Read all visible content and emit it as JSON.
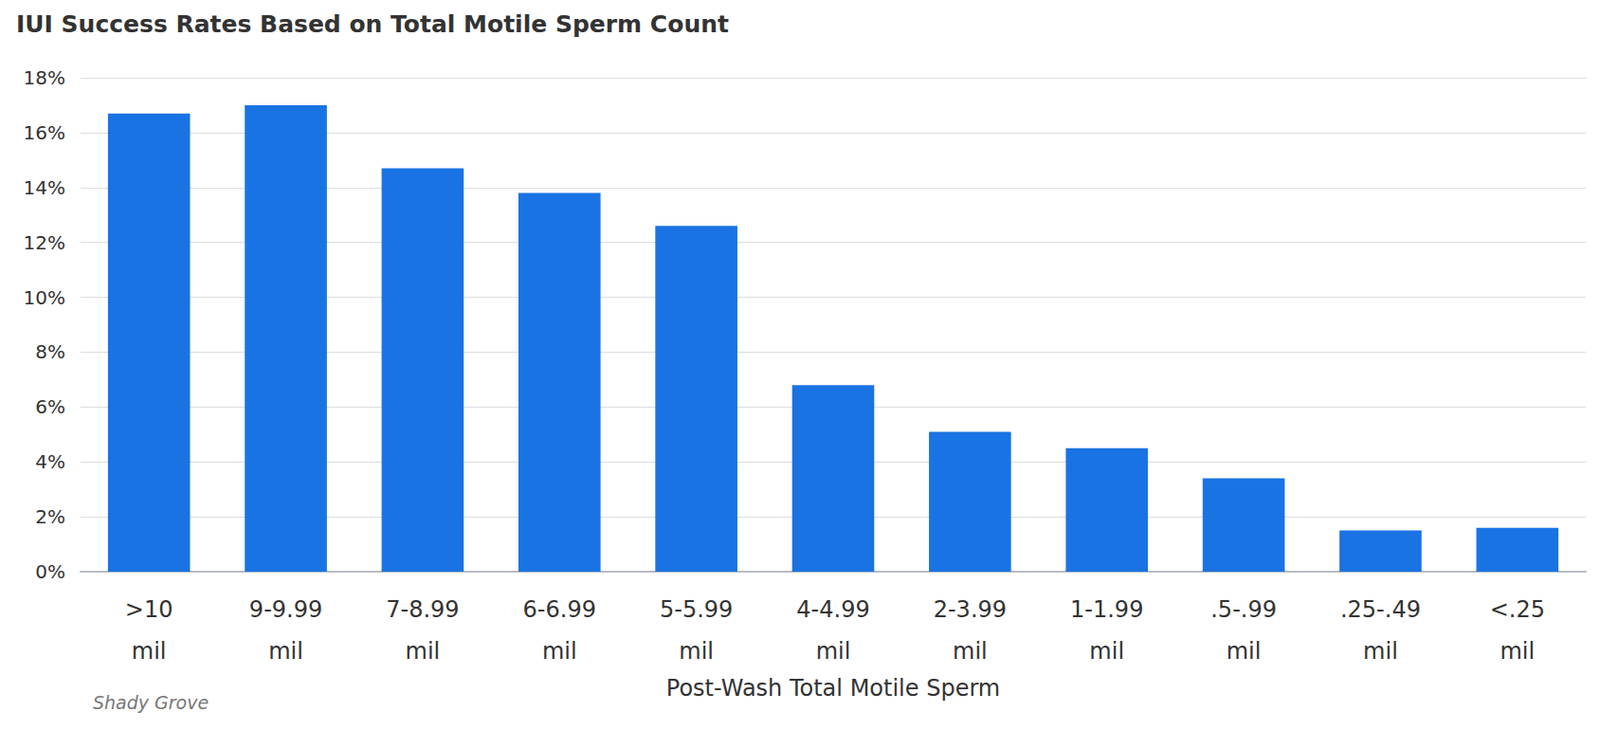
{
  "chart_data": {
    "type": "bar",
    "title": "IUI Success Rates Based on Total Motile Sperm Count",
    "x_label": "Post-Wash Total Motile Sperm",
    "annotations": [
      "Shady Grove"
    ],
    "categories": [
      ">10 mil",
      "9-9.99 mil",
      "7-8.99 mil",
      "6-6.99 mil",
      "5-5.99 mil",
      "4-4.99 mil",
      "2-3.99 mil",
      "1-1.99 mil",
      ".5-.99 mil",
      ".25-.49 mil",
      "<.25 mil"
    ],
    "values": [
      16.7,
      17.0,
      14.7,
      13.8,
      12.6,
      6.8,
      5.1,
      4.5,
      3.4,
      1.5,
      1.6
    ],
    "color": "#1a73e3",
    "ylim": [
      0,
      18
    ],
    "yticks": [
      {
        "value": 0,
        "label": "0%"
      },
      {
        "value": 2,
        "label": "2%"
      },
      {
        "value": 4,
        "label": "4%"
      },
      {
        "value": 6,
        "label": "6%"
      },
      {
        "value": 8,
        "label": "8%"
      },
      {
        "value": 10,
        "label": "10%"
      },
      {
        "value": 12,
        "label": "12%"
      },
      {
        "value": 14,
        "label": "14%"
      },
      {
        "value": 16,
        "label": "16%"
      },
      {
        "value": 18,
        "label": "18%"
      }
    ],
    "grid": true
  }
}
